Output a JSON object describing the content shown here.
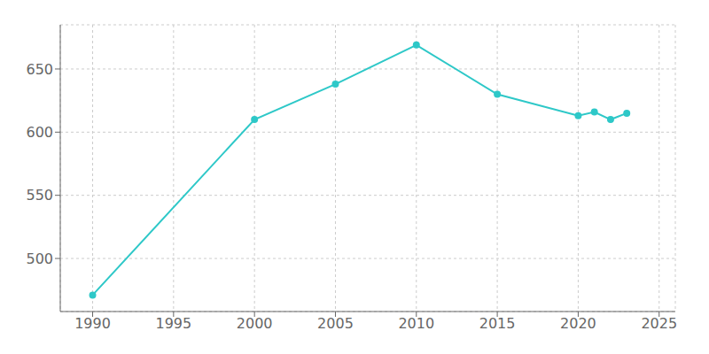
{
  "chart_data": {
    "type": "line",
    "x": [
      1990,
      2000,
      2005,
      2010,
      2015,
      2020,
      2021,
      2022,
      2023
    ],
    "series": [
      {
        "values": [
          471,
          610,
          638,
          669,
          630,
          613,
          616,
          610,
          615
        ],
        "color": "#2EC8C8",
        "marker": "circle"
      }
    ],
    "xlim": [
      1988,
      2026
    ],
    "ylim": [
      458,
      685
    ],
    "xticks": [
      1990,
      1995,
      2000,
      2005,
      2010,
      2015,
      2020,
      2025
    ],
    "yticks": [
      500,
      550,
      600,
      650
    ],
    "grid": true
  }
}
